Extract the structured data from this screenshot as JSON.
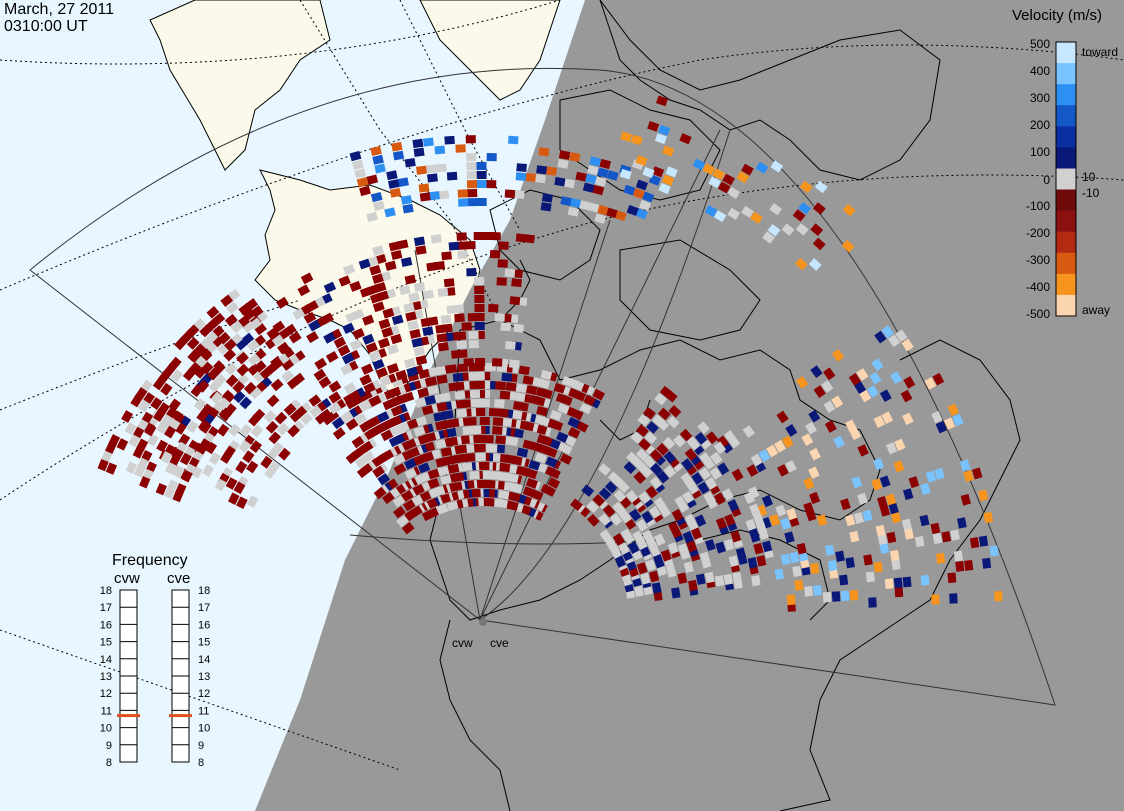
{
  "header": {
    "date": "March, 27 2011",
    "time": "0310:00 UT"
  },
  "colorbar": {
    "title": "Velocity (m/s)",
    "ticks": [
      "500",
      "400",
      "300",
      "200",
      "100",
      "10",
      "0",
      "-10",
      "-100",
      "-200",
      "-300",
      "-400",
      "-500"
    ],
    "toward_label": "toward",
    "away_label": "away",
    "colors": [
      "#c7e6ff",
      "#79c3ff",
      "#2e8ff2",
      "#1458c8",
      "#0a2fa0",
      "#0a1878",
      "#d0d0d0",
      "#6e0a0a",
      "#8b1010",
      "#b22a12",
      "#d85a10",
      "#f7941d",
      "#fbd5b0"
    ]
  },
  "frequency": {
    "title": "Frequency",
    "radars": [
      "cvw",
      "cve"
    ],
    "scale": [
      "18",
      "17",
      "16",
      "15",
      "14",
      "13",
      "12",
      "11",
      "10",
      "9",
      "8"
    ],
    "values_mhz": [
      10.7,
      10.7
    ],
    "marker_color": "#e0501e"
  },
  "radars": {
    "labels": [
      "cvw",
      "cve"
    ]
  },
  "colors": {
    "ocean": "#e8f6ff",
    "land_day": "#fbf9e9",
    "night": "#999999",
    "low_quality": "#d0d0d0",
    "away_dark": "#8b0000",
    "toward_dark": "#0a1878"
  }
}
